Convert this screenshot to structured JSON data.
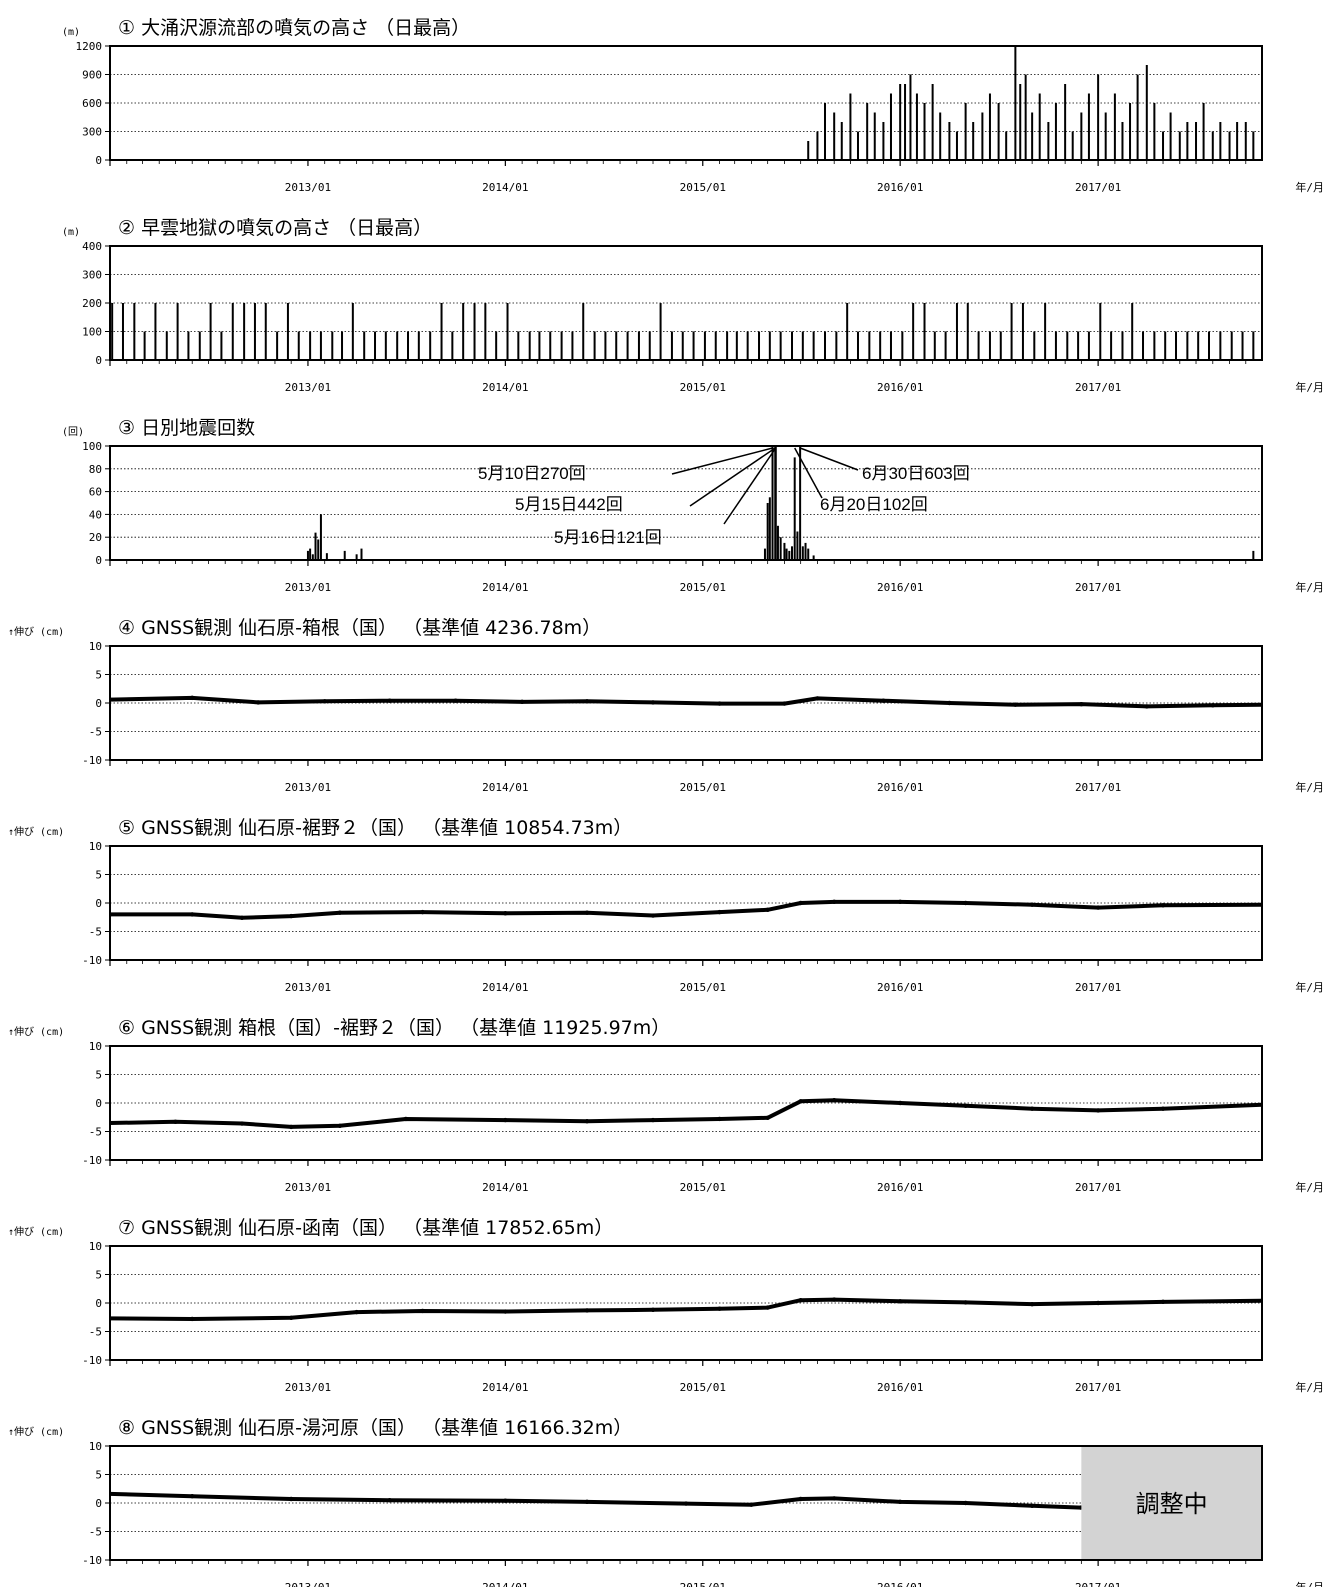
{
  "x_axis": {
    "labels": [
      "2013/01",
      "2014/01",
      "2015/01",
      "2016/01",
      "2017/01"
    ],
    "unit_label": "年/月",
    "range": [
      "2012-01-01",
      "2017-10-31"
    ]
  },
  "chart_data": [
    {
      "type": "bar",
      "title": "① 大涌沢源流部の噴気の高さ （日最高）",
      "ylabel": "(m)",
      "ylim": [
        0,
        1200
      ],
      "yticks": [
        "0",
        "300",
        "600",
        "900",
        "1200"
      ],
      "grid": true,
      "x": [
        "2015-07-15",
        "2015-08-01",
        "2015-08-15",
        "2015-09-01",
        "2015-09-15",
        "2015-10-01",
        "2015-10-15",
        "2015-11-01",
        "2015-11-15",
        "2015-12-01",
        "2015-12-15",
        "2016-01-01",
        "2016-01-10",
        "2016-01-20",
        "2016-02-01",
        "2016-02-15",
        "2016-03-01",
        "2016-03-15",
        "2016-04-01",
        "2016-04-15",
        "2016-05-01",
        "2016-05-15",
        "2016-06-01",
        "2016-06-15",
        "2016-07-01",
        "2016-07-15",
        "2016-08-01",
        "2016-08-10",
        "2016-08-20",
        "2016-09-01",
        "2016-09-15",
        "2016-10-01",
        "2016-10-15",
        "2016-11-01",
        "2016-11-15",
        "2016-12-01",
        "2016-12-15",
        "2017-01-01",
        "2017-01-15",
        "2017-02-01",
        "2017-02-15",
        "2017-03-01",
        "2017-03-15",
        "2017-04-01",
        "2017-04-15",
        "2017-05-01",
        "2017-05-15",
        "2017-06-01",
        "2017-06-15",
        "2017-07-01",
        "2017-07-15",
        "2017-08-01",
        "2017-08-15",
        "2017-09-01",
        "2017-09-15",
        "2017-10-01",
        "2017-10-15"
      ],
      "values": [
        200,
        300,
        600,
        500,
        400,
        700,
        300,
        600,
        500,
        400,
        700,
        800,
        800,
        900,
        700,
        600,
        800,
        500,
        400,
        300,
        600,
        400,
        500,
        700,
        600,
        300,
        1200,
        800,
        900,
        500,
        700,
        400,
        600,
        800,
        300,
        500,
        700,
        900,
        500,
        700,
        400,
        600,
        900,
        1000,
        600,
        300,
        500,
        300,
        400,
        400,
        600,
        300,
        400,
        300,
        400,
        400,
        300
      ]
    },
    {
      "type": "bar",
      "title": "② 早雲地獄の噴気の高さ （日最高）",
      "ylabel": "(m)",
      "ylim": [
        0,
        400
      ],
      "yticks": [
        "0",
        "100",
        "200",
        "300",
        "400"
      ],
      "grid": true,
      "x": [
        "2012-01-05",
        "2012-01-25",
        "2012-02-15",
        "2012-03-05",
        "2012-03-25",
        "2012-04-15",
        "2012-05-05",
        "2012-05-25",
        "2012-06-15",
        "2012-07-05",
        "2012-07-25",
        "2012-08-15",
        "2012-09-05",
        "2012-09-25",
        "2012-10-15",
        "2012-11-05",
        "2012-11-25",
        "2012-12-15",
        "2013-01-05",
        "2013-01-25",
        "2013-02-15",
        "2013-03-05",
        "2013-03-25",
        "2013-04-15",
        "2013-05-05",
        "2013-05-25",
        "2013-06-15",
        "2013-07-05",
        "2013-07-25",
        "2013-08-15",
        "2013-09-05",
        "2013-09-25",
        "2013-10-15",
        "2013-11-05",
        "2013-11-25",
        "2013-12-15",
        "2014-01-05",
        "2014-01-25",
        "2014-02-15",
        "2014-03-05",
        "2014-03-25",
        "2014-04-15",
        "2014-05-05",
        "2014-05-25",
        "2014-06-15",
        "2014-07-05",
        "2014-07-25",
        "2014-08-15",
        "2014-09-05",
        "2014-09-25",
        "2014-10-15",
        "2014-11-05",
        "2014-11-25",
        "2014-12-15",
        "2015-01-05",
        "2015-01-25",
        "2015-02-15",
        "2015-03-05",
        "2015-03-25",
        "2015-04-15",
        "2015-05-05",
        "2015-05-25",
        "2015-06-15",
        "2015-07-05",
        "2015-07-25",
        "2015-08-15",
        "2015-09-05",
        "2015-09-25",
        "2015-10-15",
        "2015-11-05",
        "2015-11-25",
        "2015-12-15",
        "2016-01-05",
        "2016-01-25",
        "2016-02-15",
        "2016-03-05",
        "2016-03-25",
        "2016-04-15",
        "2016-05-05",
        "2016-05-25",
        "2016-06-15",
        "2016-07-05",
        "2016-07-25",
        "2016-08-15",
        "2016-09-05",
        "2016-09-25",
        "2016-10-15",
        "2016-11-05",
        "2016-11-25",
        "2016-12-15",
        "2017-01-05",
        "2017-01-25",
        "2017-02-15",
        "2017-03-05",
        "2017-03-25",
        "2017-04-15",
        "2017-05-05",
        "2017-05-25",
        "2017-06-15",
        "2017-07-05",
        "2017-07-25",
        "2017-08-15",
        "2017-09-05",
        "2017-09-25",
        "2017-10-15"
      ],
      "values": [
        200,
        200,
        200,
        100,
        200,
        100,
        200,
        100,
        100,
        200,
        100,
        200,
        200,
        200,
        200,
        100,
        200,
        100,
        100,
        100,
        100,
        100,
        200,
        100,
        100,
        100,
        100,
        100,
        100,
        100,
        200,
        100,
        200,
        200,
        200,
        100,
        200,
        100,
        100,
        100,
        100,
        100,
        100,
        200,
        100,
        100,
        100,
        100,
        100,
        100,
        200,
        100,
        100,
        100,
        100,
        100,
        100,
        100,
        100,
        100,
        100,
        100,
        100,
        100,
        100,
        100,
        100,
        200,
        100,
        100,
        100,
        100,
        100,
        200,
        200,
        100,
        100,
        200,
        200,
        100,
        100,
        100,
        200,
        200,
        100,
        200,
        100,
        100,
        100,
        100,
        200,
        100,
        100,
        200,
        100,
        100,
        100,
        100,
        100,
        100,
        100,
        100,
        100,
        100,
        100
      ]
    },
    {
      "type": "bar",
      "title": "③ 日別地震回数",
      "ylabel": "(回)",
      "ylim": [
        0,
        100
      ],
      "yticks": [
        "0",
        "20",
        "40",
        "60",
        "80",
        "100"
      ],
      "grid": true,
      "x": [
        "2013-01-01",
        "2013-01-05",
        "2013-01-10",
        "2013-01-15",
        "2013-01-20",
        "2013-01-25",
        "2013-02-05",
        "2013-03-10",
        "2013-04-01",
        "2013-04-10",
        "2015-04-26",
        "2015-05-01",
        "2015-05-05",
        "2015-05-10",
        "2015-05-15",
        "2015-05-16",
        "2015-05-20",
        "2015-05-25",
        "2015-06-01",
        "2015-06-05",
        "2015-06-10",
        "2015-06-15",
        "2015-06-20",
        "2015-06-25",
        "2015-06-30",
        "2015-07-05",
        "2015-07-10",
        "2015-07-15",
        "2015-07-25",
        "2017-10-15"
      ],
      "values": [
        8,
        10,
        5,
        24,
        18,
        40,
        6,
        8,
        5,
        10,
        10,
        50,
        55,
        100,
        100,
        100,
        30,
        20,
        15,
        10,
        8,
        12,
        90,
        25,
        100,
        12,
        15,
        10,
        4,
        8
      ],
      "annotations": [
        {
          "text": "5月10日270回",
          "date": "2015-05-10"
        },
        {
          "text": "5月15日442回",
          "date": "2015-05-15"
        },
        {
          "text": "5月16日121回",
          "date": "2015-05-16"
        },
        {
          "text": "6月20日102回",
          "date": "2015-06-20"
        },
        {
          "text": "6月30日603回",
          "date": "2015-06-30"
        }
      ]
    },
    {
      "type": "scatter",
      "title": "④ GNSS観測 仙石原-箱根（国） （基準値 4236.78m）",
      "ylabel": "↑伸び (cm)",
      "ylim": [
        -10,
        10
      ],
      "yticks": [
        "-10",
        "-5",
        "0",
        "5",
        "10"
      ],
      "grid": true,
      "x": [
        "2012-01-01",
        "2012-06-01",
        "2012-10-01",
        "2013-02-01",
        "2013-06-01",
        "2013-10-01",
        "2014-02-01",
        "2014-06-01",
        "2014-10-01",
        "2015-02-01",
        "2015-06-01",
        "2015-08-01",
        "2015-12-01",
        "2016-04-01",
        "2016-08-01",
        "2016-12-01",
        "2017-04-01",
        "2017-08-01",
        "2017-10-31"
      ],
      "values": [
        0.6,
        0.9,
        0.1,
        0.3,
        0.4,
        0.4,
        0.2,
        0.3,
        0.1,
        -0.1,
        -0.1,
        0.8,
        0.4,
        0.0,
        -0.3,
        -0.2,
        -0.6,
        -0.4,
        -0.3
      ]
    },
    {
      "type": "scatter",
      "title": "⑤ GNSS観測 仙石原-裾野２（国） （基準値 10854.73m）",
      "ylabel": "↑伸び (cm)",
      "ylim": [
        -10,
        10
      ],
      "yticks": [
        "-10",
        "-5",
        "0",
        "5",
        "10"
      ],
      "grid": true,
      "x": [
        "2012-01-01",
        "2012-06-01",
        "2012-09-01",
        "2012-12-01",
        "2013-03-01",
        "2013-08-01",
        "2014-01-01",
        "2014-06-01",
        "2014-10-01",
        "2015-02-01",
        "2015-05-01",
        "2015-07-01",
        "2015-09-01",
        "2016-01-01",
        "2016-05-01",
        "2016-09-01",
        "2017-01-01",
        "2017-05-01",
        "2017-10-31"
      ],
      "values": [
        -2.0,
        -2.0,
        -2.6,
        -2.3,
        -1.7,
        -1.6,
        -1.8,
        -1.7,
        -2.2,
        -1.6,
        -1.2,
        0.0,
        0.2,
        0.2,
        0.0,
        -0.3,
        -0.8,
        -0.4,
        -0.3
      ]
    },
    {
      "type": "scatter",
      "title": "⑥ GNSS観測 箱根（国）-裾野２（国） （基準値 11925.97m）",
      "ylabel": "↑伸び (cm)",
      "ylim": [
        -10,
        10
      ],
      "yticks": [
        "-10",
        "-5",
        "0",
        "5",
        "10"
      ],
      "grid": true,
      "x": [
        "2012-01-01",
        "2012-05-01",
        "2012-09-01",
        "2012-12-01",
        "2013-03-01",
        "2013-07-01",
        "2014-01-01",
        "2014-06-01",
        "2014-10-01",
        "2015-02-01",
        "2015-05-01",
        "2015-07-01",
        "2015-09-01",
        "2016-01-01",
        "2016-05-01",
        "2016-09-01",
        "2017-01-01",
        "2017-05-01",
        "2017-10-31"
      ],
      "values": [
        -3.5,
        -3.3,
        -3.6,
        -4.2,
        -4.0,
        -2.8,
        -3.0,
        -3.2,
        -3.0,
        -2.8,
        -2.6,
        0.3,
        0.5,
        0.0,
        -0.5,
        -1.0,
        -1.3,
        -1.0,
        -0.3
      ]
    },
    {
      "type": "scatter",
      "title": "⑦ GNSS観測 仙石原-函南（国） （基準値 17852.65m）",
      "ylabel": "↑伸び (cm)",
      "ylim": [
        -10,
        10
      ],
      "yticks": [
        "-10",
        "-5",
        "0",
        "5",
        "10"
      ],
      "grid": true,
      "x": [
        "2012-01-01",
        "2012-06-01",
        "2012-12-01",
        "2013-04-01",
        "2013-08-01",
        "2014-01-01",
        "2014-06-01",
        "2014-10-01",
        "2015-02-01",
        "2015-05-01",
        "2015-07-01",
        "2015-09-01",
        "2016-01-01",
        "2016-05-01",
        "2016-09-01",
        "2017-01-01",
        "2017-05-01",
        "2017-10-31"
      ],
      "values": [
        -2.7,
        -2.8,
        -2.6,
        -1.6,
        -1.4,
        -1.5,
        -1.3,
        -1.2,
        -1.0,
        -0.8,
        0.5,
        0.6,
        0.3,
        0.1,
        -0.2,
        0.0,
        0.2,
        0.4
      ]
    },
    {
      "type": "scatter",
      "title": "⑧ GNSS観測 仙石原-湯河原（国） （基準値 16166.32m）",
      "ylabel": "↑伸び (cm)",
      "ylim": [
        -10,
        10
      ],
      "yticks": [
        "-10",
        "-5",
        "0",
        "5",
        "10"
      ],
      "grid": true,
      "x": [
        "2012-01-01",
        "2012-06-01",
        "2012-12-01",
        "2013-06-01",
        "2014-01-01",
        "2014-06-01",
        "2014-12-01",
        "2015-04-01",
        "2015-07-01",
        "2015-09-01",
        "2016-01-01",
        "2016-05-01",
        "2016-09-01",
        "2016-11-30"
      ],
      "values": [
        1.6,
        1.2,
        0.7,
        0.5,
        0.4,
        0.2,
        -0.1,
        -0.3,
        0.7,
        0.8,
        0.2,
        0.0,
        -0.5,
        -0.8
      ],
      "adjusting_text": "調整中",
      "adjusting_from": "2016-12-01"
    }
  ]
}
